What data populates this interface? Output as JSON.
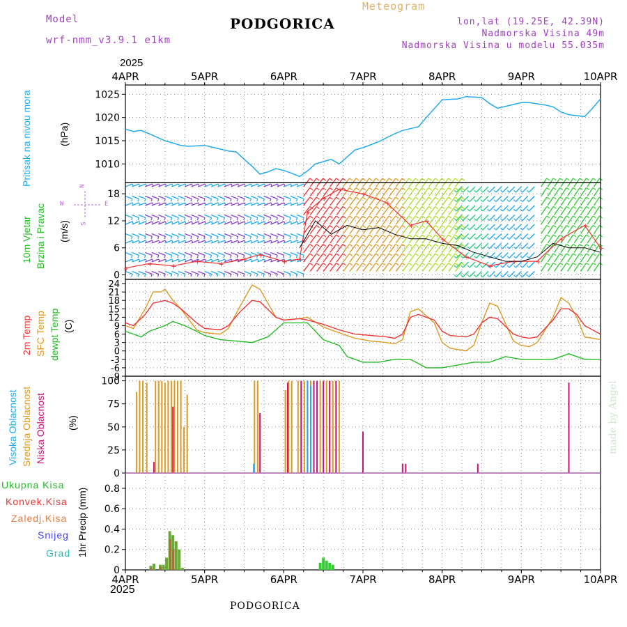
{
  "header": {
    "model_label": "Model",
    "model_name": "wrf-nmm_v3.9.1 e1km",
    "title": "PODGORICA",
    "meteogram": "Meteogram",
    "coords": "lon,lat (19.25E, 42.39N)",
    "elev": "Nadmorska Visina 49m",
    "elev_model": "Nadmorska Visina u modelu 55.035m",
    "year_top": "2025",
    "year_bottom": "2025",
    "footer": "PODGORICA",
    "credit": "made by Angel"
  },
  "colors": {
    "pressure": "#22aaee",
    "t2m": "#ee3333",
    "sfc": "#dd9922",
    "dew": "#22bb22",
    "high_cloud": "#22aaee",
    "mid_cloud": "#dd9922",
    "low_cloud": "#cc1177",
    "rain": "#66aa33",
    "wind_purple": "#8844cc"
  },
  "x_ticks": [
    "4APR",
    "5APR",
    "6APR",
    "7APR",
    "8APR",
    "9APR",
    "10APR"
  ],
  "panels": {
    "pressure": {
      "ylabel_main": "Pritisak na nivou mora",
      "ylabel_unit": "(hPa)",
      "yticks": [
        "1010",
        "1015",
        "1020",
        "1025"
      ]
    },
    "wind": {
      "ylabel_main": "10m Vjetar",
      "ylabel_sub": "Brzina i Pravac",
      "ylabel_unit": "(m/s)",
      "yticks": [
        "0",
        "6",
        "12",
        "18"
      ],
      "compass": {
        "n": "N",
        "s": "S",
        "e": "E",
        "w": "W"
      }
    },
    "temp": {
      "ylabel_a": "2m Temp",
      "ylabel_b": "SFC Temp",
      "ylabel_c": "dewpt Temp",
      "ylabel_unit": "(C)",
      "yticks": [
        "-9",
        "-6",
        "-3",
        "0",
        "3",
        "6",
        "9",
        "12",
        "15",
        "18",
        "21",
        "24"
      ]
    },
    "cloud": {
      "ylabel_a": "Visoka Oblacnost",
      "ylabel_b": "Srednja Oblacnost",
      "ylabel_c": "Niska Oblacnost",
      "ylabel_unit": "(%)",
      "yticks": [
        "0",
        "25",
        "50",
        "75",
        "100"
      ]
    },
    "precip": {
      "legend": [
        "Ukupna Kisa",
        "Konvek.Kisa",
        "Zaledj.Kisa",
        "Snijeg",
        "Grad"
      ],
      "ylabel": "1hr Precip (mm)",
      "yticks": [
        "0",
        "0.2",
        "0.4",
        "0.6",
        "0.8"
      ]
    }
  },
  "chart_data": [
    {
      "type": "line",
      "name": "pressure",
      "x_unit": "days since 4APR 00UTC",
      "ylim": [
        1006,
        1027
      ],
      "series": [
        {
          "name": "Pritisak na nivou mora",
          "x": [
            0,
            0.1,
            0.2,
            0.3,
            0.5,
            0.7,
            0.8,
            1.0,
            1.2,
            1.3,
            1.4,
            1.5,
            1.6,
            1.7,
            1.8,
            1.9,
            2.0,
            2.1,
            2.2,
            2.3,
            2.4,
            2.5,
            2.6,
            2.7,
            2.8,
            2.9,
            3.0,
            3.2,
            3.4,
            3.5,
            3.7,
            3.8,
            4.0,
            4.2,
            4.3,
            4.5,
            4.6,
            4.7,
            4.9,
            5.0,
            5.1,
            5.3,
            5.4,
            5.5,
            5.6,
            5.8,
            5.9,
            6.0
          ],
          "y": [
            1017.5,
            1017,
            1017.2,
            1016.5,
            1015,
            1014,
            1013.8,
            1014,
            1013.2,
            1012.8,
            1012.6,
            1011,
            1009.5,
            1007.8,
            1008.3,
            1009,
            1008.6,
            1008,
            1007.3,
            1008.5,
            1010,
            1010.5,
            1011,
            1010,
            1011.5,
            1013,
            1013.5,
            1014.8,
            1016.5,
            1017.2,
            1018,
            1020,
            1023.8,
            1024,
            1024.5,
            1024.3,
            1023,
            1022,
            1022.8,
            1023.2,
            1023.2,
            1022.7,
            1022.3,
            1021.2,
            1020.6,
            1020.2,
            1022,
            1024
          ]
        }
      ]
    },
    {
      "type": "line",
      "name": "wind",
      "x_unit": "days since 4APR 00UTC",
      "ylim": [
        -1,
        20.5
      ],
      "series": [
        {
          "name": "speed_red",
          "x": [
            0,
            0.3,
            0.6,
            0.9,
            1.2,
            1.5,
            1.7,
            2.0,
            2.2,
            2.3,
            2.5,
            2.7,
            3.0,
            3.3,
            3.6,
            3.8,
            4.0,
            4.3,
            4.6,
            4.9,
            5.2,
            5.5,
            5.8,
            6.0
          ],
          "y": [
            1.5,
            2.5,
            2.0,
            3.0,
            2.5,
            3.5,
            4.5,
            3.0,
            3.5,
            14,
            17,
            19,
            18,
            16,
            11,
            12,
            8,
            4,
            2,
            3,
            3,
            8,
            11,
            6
          ]
        },
        {
          "name": "speed_black",
          "x": [
            2.2,
            2.4,
            2.6,
            2.8,
            3.0,
            3.2,
            3.4,
            3.6,
            3.8,
            4.0,
            4.2,
            4.4,
            4.6,
            4.8,
            5.0,
            5.2,
            5.4,
            5.6,
            5.8,
            6.0
          ],
          "y": [
            6,
            12,
            9,
            11,
            10,
            10.5,
            9,
            8,
            8,
            7,
            6.5,
            5,
            4,
            3,
            3,
            4,
            7,
            6,
            6,
            5
          ]
        }
      ]
    },
    {
      "type": "line",
      "name": "temperature",
      "x_unit": "days since 4APR 00UTC",
      "ylim": [
        -9,
        25.5
      ],
      "series": [
        {
          "name": "2m Temp",
          "x": [
            0,
            0.1,
            0.25,
            0.35,
            0.5,
            0.6,
            0.7,
            0.9,
            1.0,
            1.2,
            1.3,
            1.45,
            1.6,
            1.7,
            1.9,
            2.0,
            2.2,
            2.3,
            2.5,
            2.7,
            2.9,
            3.1,
            3.3,
            3.4,
            3.5,
            3.6,
            3.7,
            3.9,
            4.0,
            4.1,
            4.3,
            4.4,
            4.5,
            4.6,
            4.7,
            4.9,
            5.0,
            5.1,
            5.2,
            5.4,
            5.5,
            5.6,
            5.7,
            5.8,
            6.0
          ],
          "y": [
            10,
            9,
            13,
            17,
            18,
            17,
            15,
            10,
            8,
            7.5,
            9,
            14,
            18,
            17.5,
            12,
            11,
            11.5,
            11,
            9.5,
            7.5,
            6,
            5.5,
            5,
            4.5,
            6,
            12,
            13,
            11,
            7,
            5.5,
            5,
            6,
            10,
            12,
            11.5,
            6,
            5,
            4.5,
            5,
            11,
            15,
            15,
            13,
            9,
            6
          ]
        },
        {
          "name": "SFC Temp",
          "x": [
            0,
            0.1,
            0.25,
            0.35,
            0.45,
            0.5,
            0.6,
            0.7,
            0.9,
            1.0,
            1.2,
            1.3,
            1.45,
            1.6,
            1.7,
            1.9,
            2.0,
            2.2,
            2.3,
            2.5,
            2.7,
            2.9,
            3.1,
            3.3,
            3.4,
            3.5,
            3.6,
            3.7,
            3.9,
            4.0,
            4.1,
            4.3,
            4.4,
            4.5,
            4.6,
            4.7,
            4.9,
            5.0,
            5.1,
            5.2,
            5.4,
            5.5,
            5.6,
            5.7,
            5.8,
            6.0
          ],
          "y": [
            9,
            8,
            15,
            21,
            21,
            22,
            18,
            15,
            7.5,
            6.5,
            6,
            8,
            16,
            23.5,
            22,
            12,
            11,
            11.5,
            12,
            8.5,
            6.5,
            4.5,
            3.5,
            3,
            2.5,
            4,
            14,
            15,
            10,
            3,
            1,
            0,
            2,
            10,
            17,
            16,
            3.5,
            2,
            1.5,
            3,
            12,
            19,
            17,
            12,
            5,
            4
          ]
        },
        {
          "name": "dewpt Temp",
          "x": [
            0,
            0.2,
            0.3,
            0.5,
            0.6,
            0.75,
            0.9,
            1.0,
            1.2,
            1.4,
            1.6,
            1.8,
            2.0,
            2.1,
            2.3,
            2.5,
            2.7,
            2.8,
            3.0,
            3.2,
            3.4,
            3.6,
            3.8,
            4.0,
            4.2,
            4.4,
            4.6,
            4.8,
            5.0,
            5.2,
            5.4,
            5.6,
            5.8,
            6.0
          ],
          "y": [
            7,
            5,
            7,
            9,
            10.5,
            9,
            7,
            5.5,
            4,
            3.5,
            3,
            5,
            10,
            10,
            10,
            4,
            2,
            -2,
            -4,
            -4,
            -3,
            -3,
            -6,
            -6,
            -5,
            -4,
            -4,
            -2,
            -3,
            -3,
            -3,
            -1,
            -3,
            -3
          ]
        }
      ]
    },
    {
      "type": "bar",
      "name": "cloud",
      "x_unit": "days since 4APR 00UTC",
      "ylim": [
        0,
        105
      ],
      "series": [
        {
          "name": "Srednja Oblacnost",
          "x": [
            0.14,
            0.18,
            0.22,
            0.27,
            0.38,
            0.42,
            0.46,
            0.5,
            0.54,
            0.58,
            0.62,
            0.66,
            0.7,
            0.74,
            0.78,
            1.63,
            1.67,
            2.02,
            2.06,
            2.1,
            2.18,
            2.22,
            2.26,
            2.34,
            2.38,
            2.46,
            2.54,
            2.58,
            2.62,
            2.66,
            2.7
          ],
          "y": [
            88,
            100,
            100,
            98,
            100,
            100,
            100,
            98,
            100,
            100,
            100,
            100,
            100,
            50,
            85,
            100,
            100,
            90,
            100,
            100,
            100,
            100,
            100,
            100,
            100,
            100,
            100,
            100,
            100,
            100,
            100
          ]
        },
        {
          "name": "Niska Oblacnost",
          "x": [
            0.36,
            0.6,
            1.7,
            2.05,
            2.22,
            2.3,
            2.38,
            2.42,
            2.5,
            2.58,
            2.66,
            3.0,
            3.5,
            3.54,
            4.45,
            5.6
          ],
          "y": [
            12,
            72,
            65,
            98,
            100,
            100,
            100,
            100,
            100,
            100,
            100,
            45,
            10,
            10,
            10,
            98
          ]
        },
        {
          "name": "Visoka Oblacnost",
          "x": [
            1.62,
            2.3,
            2.34
          ],
          "y": [
            10,
            100,
            95
          ]
        }
      ]
    },
    {
      "type": "bar",
      "name": "precip",
      "x_unit": "days since 4APR 00UTC",
      "ylim": [
        0,
        0.95
      ],
      "series": [
        {
          "name": "Ukupna Kisa",
          "x": [
            0.32,
            0.36,
            0.44,
            0.48,
            0.52,
            0.56,
            0.6,
            0.64,
            0.68,
            0.72,
            2.46,
            2.5,
            2.54,
            2.58,
            2.62
          ],
          "y": [
            0.04,
            0.06,
            0.05,
            0.05,
            0.12,
            0.38,
            0.34,
            0.28,
            0.2,
            0.02,
            0.07,
            0.12,
            0.09,
            0.07,
            0.05
          ]
        },
        {
          "name": "Konvek.Kisa",
          "x": [
            0.33,
            0.45,
            0.57,
            0.61
          ],
          "y": [
            0.02,
            0.03,
            0.3,
            0.2
          ]
        }
      ]
    }
  ]
}
